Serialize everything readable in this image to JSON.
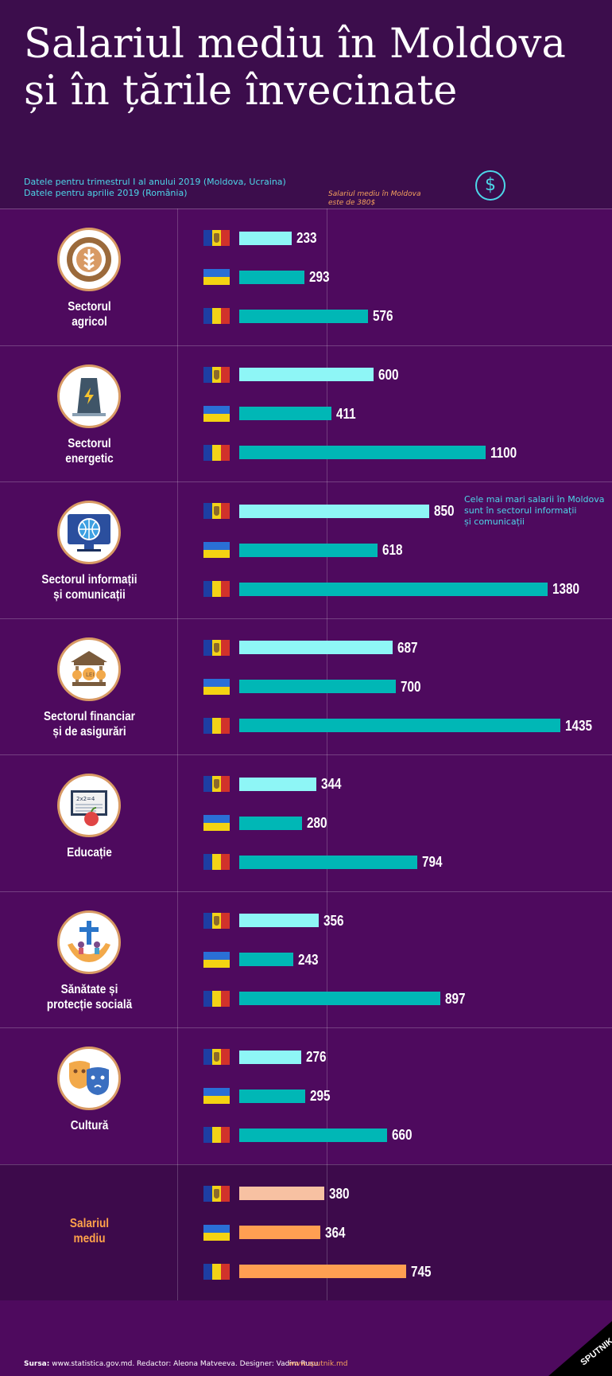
{
  "title": [
    "Salariul mediu în Moldova",
    "și în țările învecinate"
  ],
  "notes": [
    "Datele pentru trimestrul I al anului 2019 (Moldova, Ucraina)",
    "Datele pentru aprilie 2019 (România)"
  ],
  "dollar_symbol": "$",
  "average_note": [
    "Salariul mediu în Moldova",
    "este de 380$"
  ],
  "highlight_note": [
    "Cele mai mari salarii în Moldova",
    "sunt în sectorul informații",
    "și comunicații"
  ],
  "colors": {
    "moldova": "#8ef6f6",
    "other": "#00b7b6",
    "avg_moldova": "#f7c1a2",
    "avg_other": "#ff9f52"
  },
  "icons": [
    "wheat-gear-icon",
    "power-plant-icon",
    "globe-monitor-icon",
    "bank-icon",
    "book-apple-icon",
    "medical-hands-icon",
    "theater-masks-icon",
    "dollar-icon",
    "sputnik-logo-icon",
    "moldova-flag-icon",
    "ukraine-flag-icon",
    "romania-flag-icon"
  ],
  "chart_data": {
    "type": "bar",
    "orientation": "horizontal",
    "title": "Salariul mediu în Moldova și în țările învecinate",
    "unit": "USD",
    "countries": [
      "Moldova",
      "Ucraina",
      "România"
    ],
    "reference_line": {
      "value": 380,
      "label": "Salariul mediu în Moldova este de 380$"
    },
    "sectors": [
      {
        "label": [
          "Sectorul",
          "agricol"
        ],
        "values": [
          233,
          293,
          576
        ],
        "icon": "wheat-gear-icon"
      },
      {
        "label": [
          "Sectorul",
          "energetic"
        ],
        "values": [
          600,
          411,
          1100
        ],
        "icon": "power-plant-icon"
      },
      {
        "label": [
          "Sectorul informații",
          "și comunicații"
        ],
        "values": [
          850,
          618,
          1380
        ],
        "icon": "globe-monitor-icon"
      },
      {
        "label": [
          "Sectorul financiar",
          "și de asigurări"
        ],
        "values": [
          687,
          700,
          1435
        ],
        "icon": "bank-icon"
      },
      {
        "label": [
          "Educație"
        ],
        "values": [
          344,
          280,
          794
        ],
        "icon": "book-apple-icon"
      },
      {
        "label": [
          "Sănătate și",
          "protecție socială"
        ],
        "values": [
          356,
          243,
          897
        ],
        "icon": "medical-hands-icon"
      },
      {
        "label": [
          "Cultură"
        ],
        "values": [
          276,
          295,
          660
        ],
        "icon": "theater-masks-icon"
      },
      {
        "label": [
          "Salariul",
          "mediu"
        ],
        "values": [
          380,
          364,
          745
        ],
        "icon": null,
        "average": true
      }
    ]
  },
  "footer": {
    "source_prefix": "Sursa:",
    "source_rest": " www.statistica.gov.md. Redactor: Aleona Matveeva. Designer: Vadim Rusu",
    "site": "www.sputnik.md",
    "brand": "SPUTNIK"
  }
}
